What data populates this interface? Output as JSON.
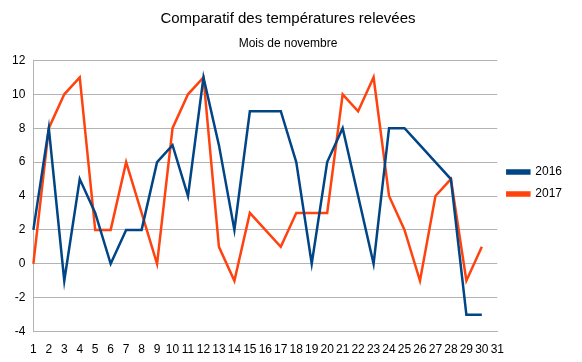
{
  "chart_data": {
    "type": "line",
    "title": "Comparatif des températures relevées",
    "subtitle": "Mois de novembre",
    "categories": [
      "1",
      "2",
      "3",
      "4",
      "5",
      "6",
      "7",
      "8",
      "9",
      "10",
      "11",
      "12",
      "13",
      "14",
      "15",
      "16",
      "17",
      "18",
      "19",
      "20",
      "21",
      "22",
      "23",
      "24",
      "25",
      "26",
      "27",
      "28",
      "29",
      "30",
      "31"
    ],
    "series": [
      {
        "name": "2016",
        "color": "#004586",
        "values": [
          2,
          8,
          -1,
          5,
          3,
          0,
          2,
          2,
          6,
          7,
          4,
          11,
          7,
          2,
          9,
          9,
          9,
          6,
          0,
          6,
          8,
          4,
          0,
          8,
          8,
          7,
          6,
          5,
          -3,
          -3,
          null
        ]
      },
      {
        "name": "2017",
        "color": "#ff420e",
        "values": [
          0,
          8,
          10,
          11,
          2,
          2,
          6,
          3,
          0,
          8,
          10,
          11,
          1,
          -1,
          3,
          2,
          1,
          3,
          3,
          3,
          10,
          9,
          11,
          4,
          2,
          -1,
          4,
          5,
          -1,
          1,
          null
        ]
      }
    ],
    "ylim": [
      -4,
      12
    ],
    "yticks": [
      -4,
      -2,
      0,
      2,
      4,
      6,
      8,
      10,
      12
    ],
    "grid": true,
    "legend": "right"
  }
}
